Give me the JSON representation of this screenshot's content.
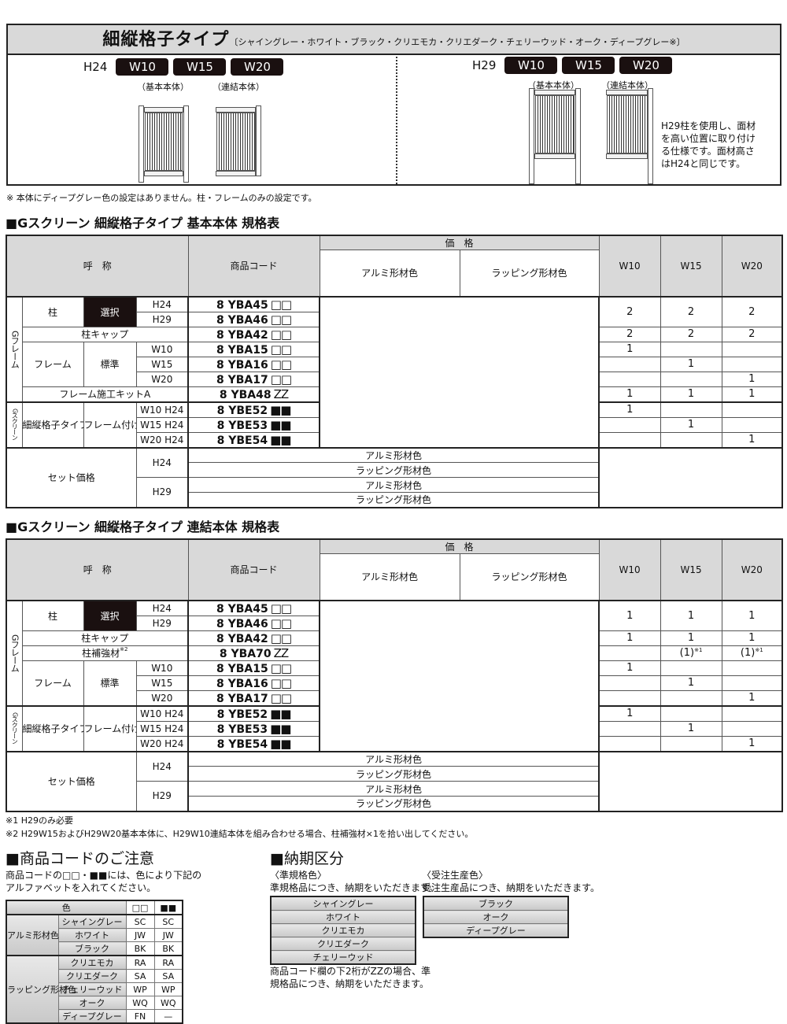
{
  "top": {
    "title": "細縦格子タイプ",
    "title_sub": "〔シャイングレー・ホワイト・ブラック・クリエモカ・クリエダーク・チェリーウッド・オーク・ディープグレー※〕",
    "left": {
      "height": "H24",
      "widths": [
        "W10",
        "W15",
        "W20"
      ],
      "captions": [
        "（基本本体）",
        "（連結本体）"
      ]
    },
    "right": {
      "height": "H29",
      "widths": [
        "W10",
        "W15",
        "W20"
      ],
      "captions": [
        "（基本本体）",
        "（連結本体）"
      ],
      "note_lines": [
        "H29柱を使用し、面材",
        "を高い位置に取り付け",
        "る仕様です。面材高さ",
        "はH24と同じです。"
      ]
    },
    "footnote": "※ 本体にディープグレー色の設定はありません。柱・フレームのみの設定です。"
  },
  "t1": {
    "heading": "■Gスクリーン 細縦格子タイプ 基本本体 規格表",
    "header": {
      "name": "呼　称",
      "code": "商品コード",
      "price": "価　格",
      "alu": "アルミ形材色",
      "wrap": "ラッピング形材色",
      "w": [
        "W10",
        "W15",
        "W20"
      ]
    },
    "frame_group": "Gフレーム",
    "screen_group": "Gスクリーン",
    "rows": [
      {
        "c1": "柱",
        "c2": "選択",
        "c3": "H24",
        "code": "8 YBA45",
        "suffix": "□□",
        "qty": [
          "2",
          "2",
          "2"
        ]
      },
      {
        "c3": "H29",
        "code": "8 YBA46",
        "suffix": "□□"
      },
      {
        "c1": "柱キャップ",
        "code": "8 YBA42",
        "suffix": "□□",
        "qty": [
          "2",
          "2",
          "2"
        ]
      },
      {
        "c1": "フレーム",
        "c2": "標準",
        "c3": "W10",
        "code": "8 YBA15",
        "suffix": "□□",
        "qty": [
          "1",
          "",
          ""
        ]
      },
      {
        "c3": "W15",
        "code": "8 YBA16",
        "suffix": "□□",
        "qty": [
          "",
          "1",
          ""
        ]
      },
      {
        "c3": "W20",
        "code": "8 YBA17",
        "suffix": "□□",
        "qty": [
          "",
          "",
          "1"
        ]
      },
      {
        "c1": "フレーム施工キットA",
        "code": "8 YBA48",
        "suffix": "ZZ",
        "qty": [
          "1",
          "1",
          "1"
        ]
      },
      {
        "c1": "細縦格子タイプ",
        "c2": "フレーム付け用",
        "c3": "W10 H24",
        "code": "8 YBE52",
        "suffix": "■■",
        "qty": [
          "1",
          "",
          ""
        ]
      },
      {
        "c3": "W15 H24",
        "code": "8 YBE53",
        "suffix": "■■",
        "qty": [
          "",
          "1",
          ""
        ]
      },
      {
        "c3": "W20 H24",
        "code": "8 YBE54",
        "suffix": "■■",
        "qty": [
          "",
          "",
          "1"
        ]
      }
    ],
    "set": {
      "label": "セット価格",
      "h24": "H24",
      "h29": "H29",
      "items": [
        "アルミ形材色",
        "ラッピング形材色",
        "アルミ形材色",
        "ラッピング形材色"
      ]
    }
  },
  "t2": {
    "heading": "■Gスクリーン 細縦格子タイプ 連結本体 規格表",
    "header": {
      "name": "呼　称",
      "code": "商品コード",
      "price": "価　格",
      "alu": "アルミ形材色",
      "wrap": "ラッピング形材色",
      "w": [
        "W10",
        "W15",
        "W20"
      ]
    },
    "frame_group": "Gフレーム",
    "screen_group": "Gスクリーン",
    "rows": [
      {
        "c1": "柱",
        "c2": "選択",
        "c3": "H24",
        "code": "8 YBA45",
        "suffix": "□□",
        "qty": [
          "1",
          "1",
          "1"
        ]
      },
      {
        "c3": "H29",
        "code": "8 YBA46",
        "suffix": "□□"
      },
      {
        "c1": "柱キャップ",
        "code": "8 YBA42",
        "suffix": "□□",
        "qty": [
          "1",
          "1",
          "1"
        ]
      },
      {
        "c1": "柱補強材",
        "c1_note": "※2",
        "code": "8 YBA70",
        "suffix": "ZZ",
        "qty": [
          "",
          "(1)",
          "(1)"
        ],
        "qty_note": [
          "",
          "※1",
          "※1"
        ]
      },
      {
        "c1": "フレーム",
        "c2": "標準",
        "c3": "W10",
        "code": "8 YBA15",
        "suffix": "□□",
        "qty": [
          "1",
          "",
          ""
        ]
      },
      {
        "c3": "W15",
        "code": "8 YBA16",
        "suffix": "□□",
        "qty": [
          "",
          "1",
          ""
        ]
      },
      {
        "c3": "W20",
        "code": "8 YBA17",
        "suffix": "□□",
        "qty": [
          "",
          "",
          "1"
        ]
      },
      {
        "c1": "細縦格子タイプ",
        "c2": "フレーム付け用",
        "c3": "W10 H24",
        "code": "8 YBE52",
        "suffix": "■■",
        "qty": [
          "1",
          "",
          ""
        ]
      },
      {
        "c3": "W15 H24",
        "code": "8 YBE53",
        "suffix": "■■",
        "qty": [
          "",
          "1",
          ""
        ]
      },
      {
        "c3": "W20 H24",
        "code": "8 YBE54",
        "suffix": "■■",
        "qty": [
          "",
          "",
          "1"
        ]
      }
    ],
    "set": {
      "label": "セット価格",
      "h24": "H24",
      "h29": "H29",
      "items": [
        "アルミ形材色",
        "ラッピング形材色",
        "アルミ形材色",
        "ラッピング形材色"
      ]
    }
  },
  "notes": [
    "※1 H29のみ必要",
    "※2 H29W15およびH29W20基本本体に、H29W10連結本体を組み合わせる場合、柱補強材×1を拾い出してください。"
  ],
  "code_notice": {
    "heading": "■商品コードのご注意",
    "lines": [
      "商品コードの□□・■■には、色により下記の",
      "アルファベットを入れてください。"
    ],
    "header": {
      "color": "色",
      "white": "□□",
      "black": "■■"
    },
    "groups": [
      {
        "name": "アルミ形材色",
        "rows": [
          [
            "シャイングレー",
            "SC",
            "SC"
          ],
          [
            "ホワイト",
            "JW",
            "JW"
          ],
          [
            "ブラック",
            "BK",
            "BK"
          ]
        ]
      },
      {
        "name": "ラッピング形材色",
        "rows": [
          [
            "クリエモカ",
            "RA",
            "RA"
          ],
          [
            "クリエダーク",
            "SA",
            "SA"
          ],
          [
            "チェリーウッド",
            "WP",
            "WP"
          ],
          [
            "オーク",
            "WQ",
            "WQ"
          ],
          [
            "ディープグレー",
            "FN",
            "—"
          ]
        ]
      }
    ]
  },
  "delivery": {
    "heading": "■納期区分",
    "standard": {
      "title": "〈準規格色〉",
      "desc": "準規格品につき、納期をいただきます。",
      "colors": [
        "シャイングレー",
        "ホワイト",
        "クリエモカ",
        "クリエダーク",
        "チェリーウッド"
      ],
      "note_lines": [
        "商品コード欄の下2桁がZZの場合、準",
        "規格品につき、納期をいただきます。"
      ]
    },
    "order": {
      "title": "〈受注生産色〉",
      "desc": "受注生産品につき、納期をいただきます。",
      "colors": [
        "ブラック",
        "オーク",
        "ディープグレー"
      ]
    }
  }
}
